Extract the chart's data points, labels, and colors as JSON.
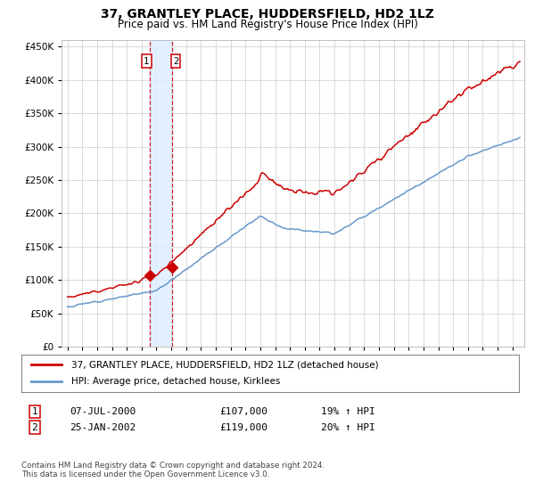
{
  "title": "37, GRANTLEY PLACE, HUDDERSFIELD, HD2 1LZ",
  "subtitle": "Price paid vs. HM Land Registry's House Price Index (HPI)",
  "legend_line1": "37, GRANTLEY PLACE, HUDDERSFIELD, HD2 1LZ (detached house)",
  "legend_line2": "HPI: Average price, detached house, Kirklees",
  "transaction1_date": "07-JUL-2000",
  "transaction1_price": 107000,
  "transaction1_hpi": "19% ↑ HPI",
  "transaction2_date": "25-JAN-2002",
  "transaction2_price": 119000,
  "transaction2_hpi": "20% ↑ HPI",
  "footer": "Contains HM Land Registry data © Crown copyright and database right 2024.\nThis data is licensed under the Open Government Licence v3.0.",
  "red_color": "#cc0000",
  "blue_color": "#6699cc",
  "shade_color": "#ddeeff",
  "ylim": [
    0,
    460000
  ],
  "yticks": [
    0,
    50000,
    100000,
    150000,
    200000,
    250000,
    300000,
    350000,
    400000,
    450000
  ],
  "background_color": "#ffffff",
  "grid_color": "#cccccc",
  "t1_year": 2000.54,
  "t1_price": 107000,
  "t2_year": 2002.07,
  "t2_price": 119000
}
